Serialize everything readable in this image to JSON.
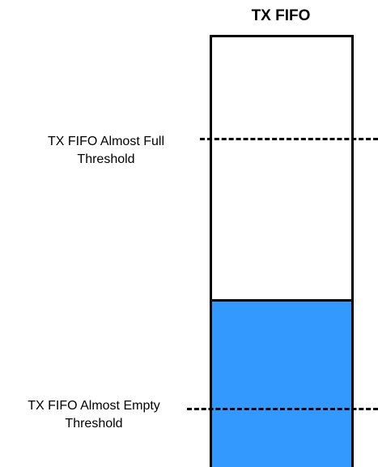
{
  "fifo": {
    "title": "TX FIFO",
    "fill_color": "#3399ff",
    "fill_level_percent": 39
  },
  "thresholds": {
    "almost_full": {
      "line1": "TX FIFO Almost Full",
      "line2": "Threshold"
    },
    "almost_empty": {
      "line1": "TX FIFO Almost Empty",
      "line2": "Threshold"
    }
  }
}
